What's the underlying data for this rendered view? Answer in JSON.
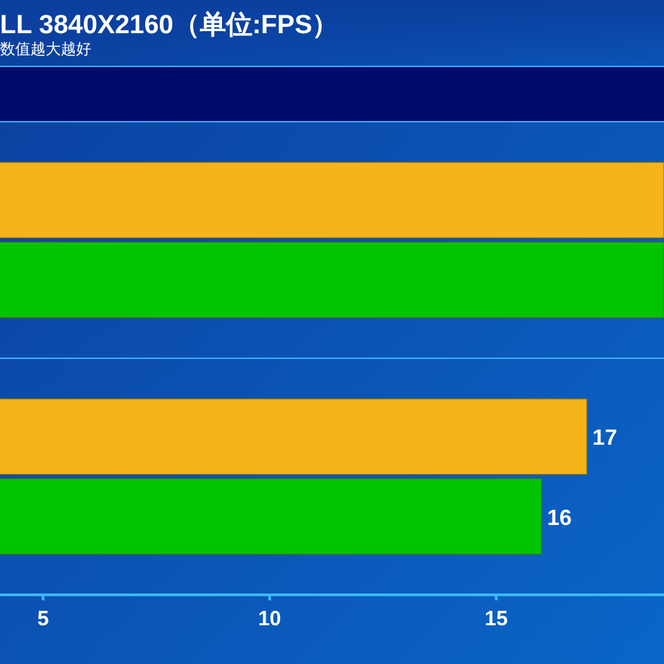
{
  "chart_data": {
    "type": "bar",
    "orientation": "horizontal",
    "title": "LL 3840X2160（单位:FPS）",
    "subtitle": "数值越大越好",
    "categories": [
      null,
      null
    ],
    "series": [
      {
        "color": "#f5b41a",
        "values": [
          18.7,
          17
        ],
        "value_labels": [
          null,
          "17"
        ]
      },
      {
        "color": "#00c400",
        "values": [
          18.7,
          16
        ],
        "value_labels": [
          null,
          "16"
        ]
      }
    ],
    "xlim": [
      4.05,
      18.7
    ],
    "xticks": [
      5,
      10,
      15
    ],
    "grid": false
  }
}
